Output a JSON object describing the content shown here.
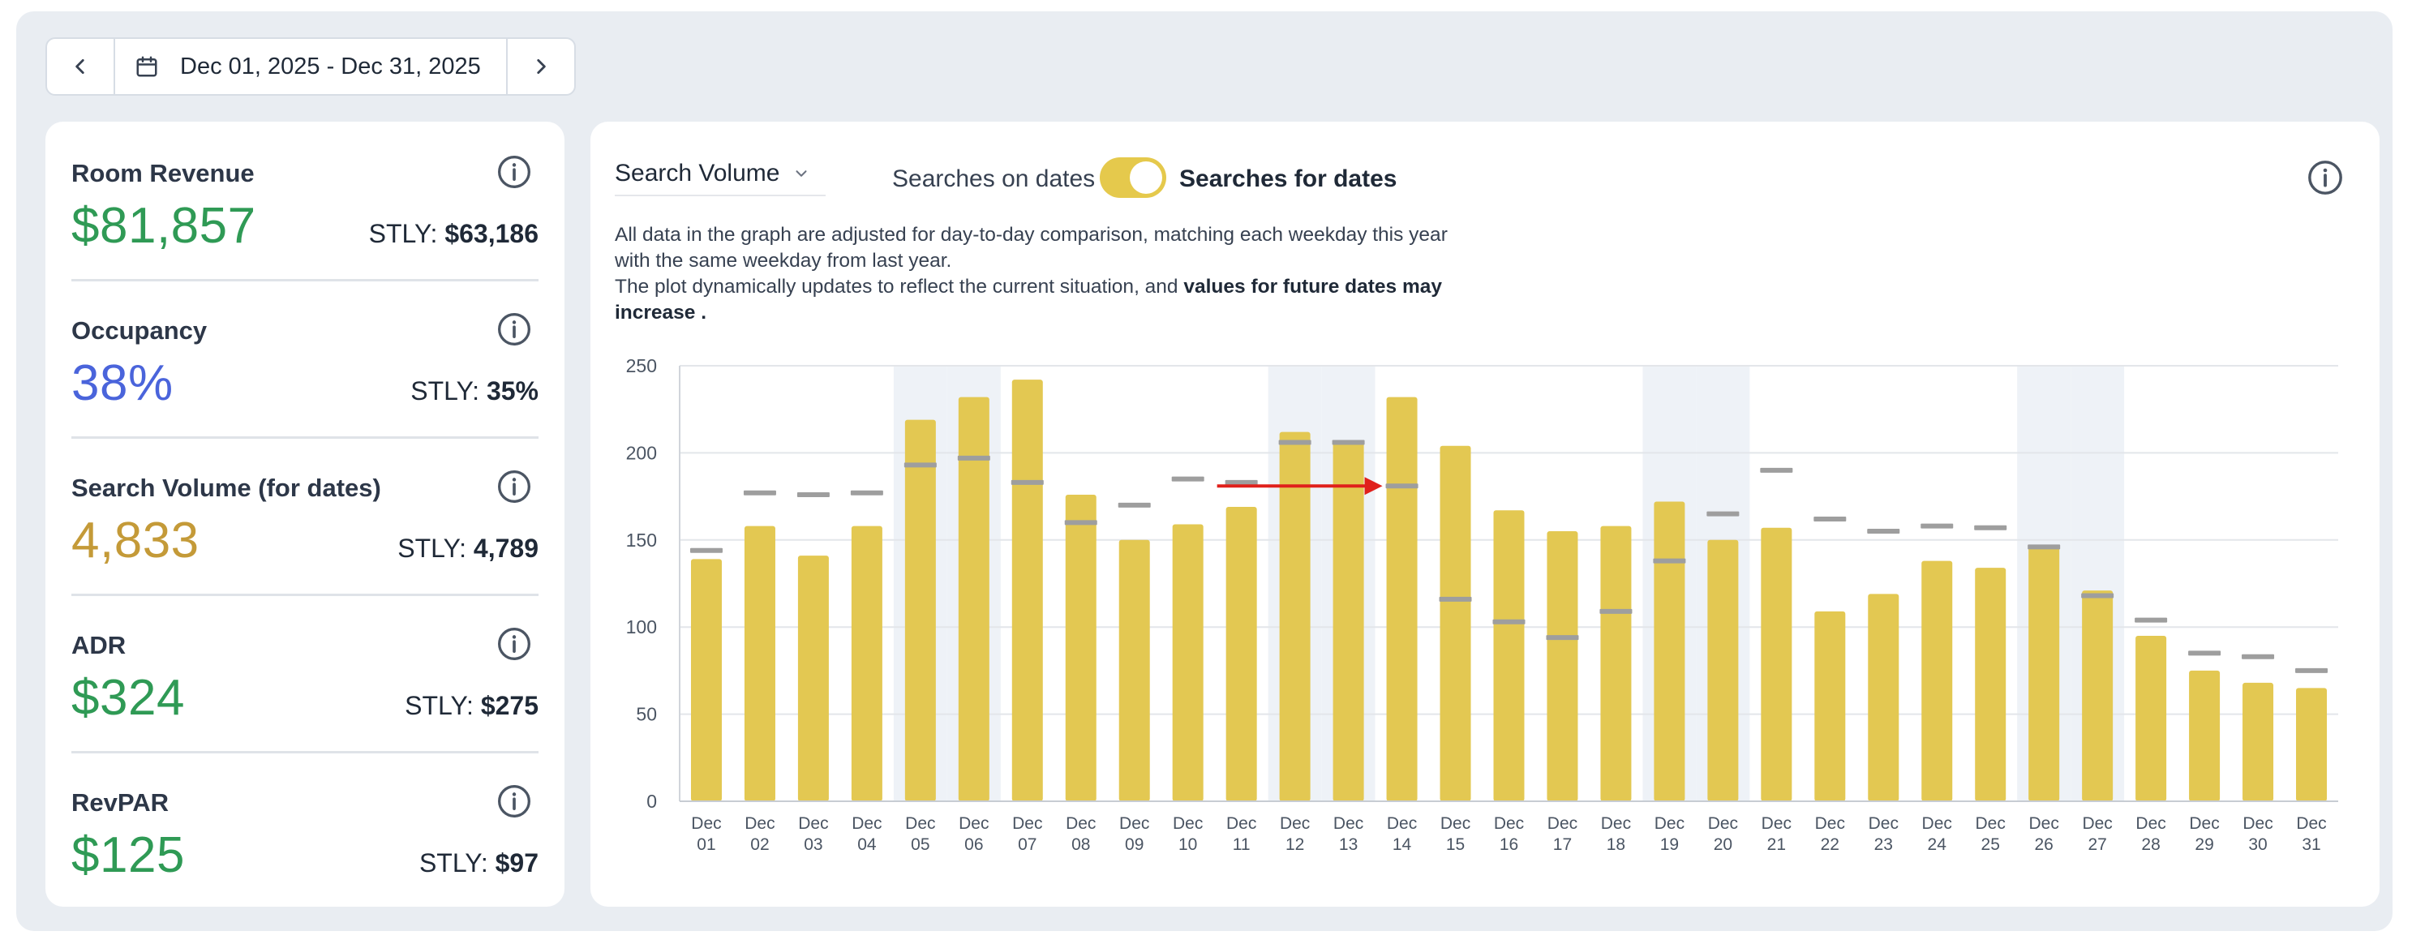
{
  "date_nav": {
    "range_label": "Dec 01, 2025 - Dec 31, 2025",
    "prev_icon": "chevron-left-icon",
    "next_icon": "chevron-right-icon",
    "calendar_icon": "calendar-icon"
  },
  "kpis": [
    {
      "title": "Room Revenue",
      "prefix": "$",
      "value": "81,857",
      "stly_label": "STLY:",
      "stly_value": "$63,186",
      "color": "#2f9a55"
    },
    {
      "title": "Occupancy",
      "prefix": "",
      "value": "38%",
      "stly_label": "STLY:",
      "stly_value": "35%",
      "color": "#4a64db"
    },
    {
      "title": "Search Volume (for dates)",
      "prefix": "",
      "value": "4,833",
      "stly_label": "STLY:",
      "stly_value": "4,789",
      "color": "#c49a38"
    },
    {
      "title": "ADR",
      "prefix": "$",
      "value": "324",
      "stly_label": "STLY:",
      "stly_value": "$275",
      "color": "#2f9a55"
    },
    {
      "title": "RevPAR",
      "prefix": "$",
      "value": "125",
      "stly_label": "STLY:",
      "stly_value": "$97",
      "color": "#2f9a55"
    }
  ],
  "chart_panel": {
    "metric_select": "Search Volume",
    "toggle_off_label": "Searches on dates",
    "toggle_on_label": "Searches for dates",
    "toggle_state": "on",
    "note_line1": "All data in the graph are adjusted for day-to-day comparison, matching each weekday this year with the same weekday from last year.",
    "note_line2_start": "The plot dynamically updates to reflect the current situation, and ",
    "note_line2_bold": "values for future dates may increase ."
  },
  "colors": {
    "bar": "#e3c852",
    "stly_marker": "#9e9e9e",
    "weekend_band": "#eef2f7",
    "arrow": "#e0201b",
    "accent_green": "#2f9a55",
    "accent_blue": "#4a64db",
    "accent_gold": "#c49a38"
  },
  "chart_data": {
    "type": "bar",
    "categories": [
      "Dec 01",
      "Dec 02",
      "Dec 03",
      "Dec 04",
      "Dec 05",
      "Dec 06",
      "Dec 07",
      "Dec 08",
      "Dec 09",
      "Dec 10",
      "Dec 11",
      "Dec 12",
      "Dec 13",
      "Dec 14",
      "Dec 15",
      "Dec 16",
      "Dec 17",
      "Dec 18",
      "Dec 19",
      "Dec 20",
      "Dec 21",
      "Dec 22",
      "Dec 23",
      "Dec 24",
      "Dec 25",
      "Dec 26",
      "Dec 27",
      "Dec 28",
      "Dec 29",
      "Dec 30",
      "Dec 31"
    ],
    "series": [
      {
        "values": [
          139,
          158,
          141,
          158,
          219,
          232,
          242,
          176,
          150,
          159,
          169,
          212,
          207,
          232,
          204,
          167,
          155,
          158,
          172,
          150,
          157,
          109,
          119,
          138,
          134,
          147,
          121,
          95,
          75,
          68,
          65
        ]
      },
      {
        "values": [
          144,
          177,
          176,
          177,
          193,
          197,
          183,
          160,
          170,
          185,
          183,
          206,
          206,
          181,
          116,
          103,
          94,
          109,
          138,
          165,
          190,
          162,
          155,
          158,
          157,
          146,
          118,
          104,
          85,
          83,
          75
        ]
      }
    ],
    "ylim": [
      0,
      250
    ],
    "yticks": [
      0,
      50,
      100,
      150,
      200,
      250
    ],
    "shaded_categories": [
      "Dec 05",
      "Dec 06",
      "Dec 12",
      "Dec 13",
      "Dec 19",
      "Dec 20",
      "Dec 26",
      "Dec 27"
    ],
    "annotation_arrow": {
      "from_x": "Dec 11",
      "to_x": "Dec 14",
      "y": 181
    },
    "grid": true
  }
}
